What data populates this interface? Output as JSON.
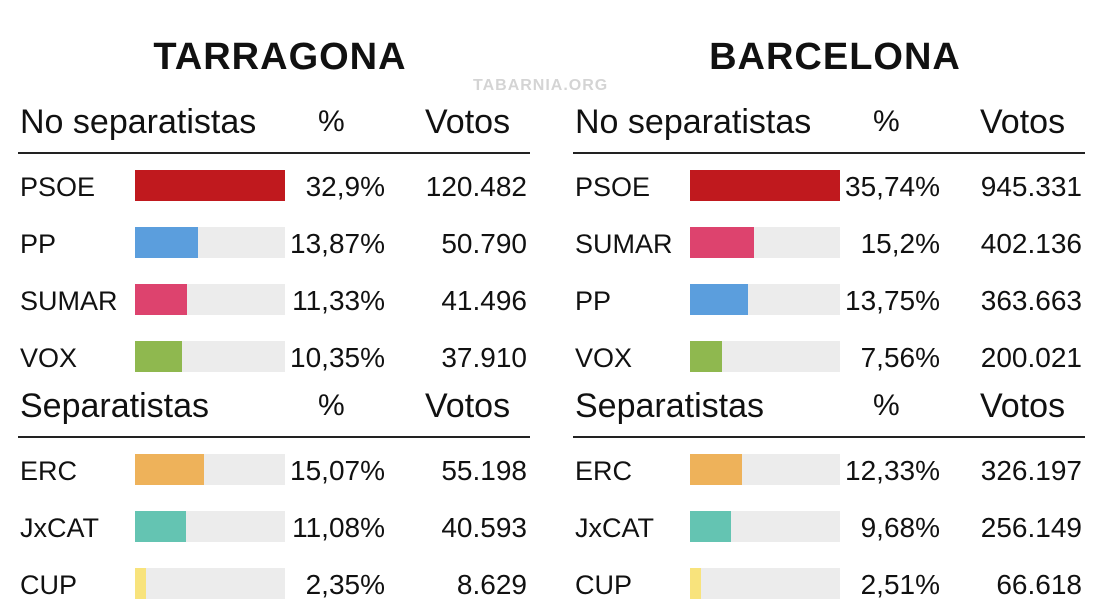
{
  "watermark": "TABARNIA.ORG",
  "chart_data": [
    {
      "type": "bar",
      "title": "TARRAGONA",
      "sections": [
        {
          "title": "No separatistas",
          "pct_header": "%",
          "votes_header": "Votos",
          "rows": [
            {
              "party": "PSOE",
              "pct": 32.9,
              "pct_label": "32,9%",
              "votes": "120.482",
              "color": "#c0191e"
            },
            {
              "party": "PP",
              "pct": 13.87,
              "pct_label": "13,87%",
              "votes": "50.790",
              "color": "#5b9edd"
            },
            {
              "party": "SUMAR",
              "pct": 11.33,
              "pct_label": "11,33%",
              "votes": "41.496",
              "color": "#dd436e"
            },
            {
              "party": "VOX",
              "pct": 10.35,
              "pct_label": "10,35%",
              "votes": "37.910",
              "color": "#8fb84f"
            }
          ]
        },
        {
          "title": "Separatistas",
          "pct_header": "%",
          "votes_header": "Votos",
          "rows": [
            {
              "party": "ERC",
              "pct": 15.07,
              "pct_label": "15,07%",
              "votes": "55.198",
              "color": "#eeb25a"
            },
            {
              "party": "JxCAT",
              "pct": 11.08,
              "pct_label": "11,08%",
              "votes": "40.593",
              "color": "#64c4b2"
            },
            {
              "party": "CUP",
              "pct": 2.35,
              "pct_label": "2,35%",
              "votes": "8.629",
              "color": "#f8e37c"
            }
          ]
        }
      ]
    },
    {
      "type": "bar",
      "title": "BARCELONA",
      "sections": [
        {
          "title": "No separatistas",
          "pct_header": "%",
          "votes_header": "Votos",
          "rows": [
            {
              "party": "PSOE",
              "pct": 35.74,
              "pct_label": "35,74%",
              "votes": "945.331",
              "color": "#c0191e"
            },
            {
              "party": "SUMAR",
              "pct": 15.2,
              "pct_label": "15,2%",
              "votes": "402.136",
              "color": "#dd436e"
            },
            {
              "party": "PP",
              "pct": 13.75,
              "pct_label": "13,75%",
              "votes": "363.663",
              "color": "#5b9edd"
            },
            {
              "party": "VOX",
              "pct": 7.56,
              "pct_label": "7,56%",
              "votes": "200.021",
              "color": "#8fb84f"
            }
          ]
        },
        {
          "title": "Separatistas",
          "pct_header": "%",
          "votes_header": "Votos",
          "rows": [
            {
              "party": "ERC",
              "pct": 12.33,
              "pct_label": "12,33%",
              "votes": "326.197",
              "color": "#eeb25a"
            },
            {
              "party": "JxCAT",
              "pct": 9.68,
              "pct_label": "9,68%",
              "votes": "256.149",
              "color": "#64c4b2"
            },
            {
              "party": "CUP",
              "pct": 2.51,
              "pct_label": "2,51%",
              "votes": "66.618",
              "color": "#f8e37c"
            }
          ]
        }
      ]
    }
  ]
}
